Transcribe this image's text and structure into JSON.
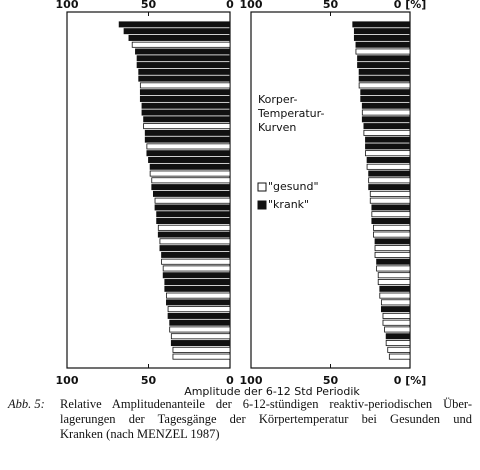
{
  "chart_data": [
    {
      "type": "bar",
      "orientation": "horizontal",
      "xlim": [
        100,
        0
      ],
      "xticks": [
        100,
        50,
        0
      ],
      "series": [
        {
          "name": "\"gesund\"",
          "color": "#ffffff",
          "values": [
            null,
            null,
            null,
            60,
            null,
            null,
            null,
            null,
            null,
            55,
            null,
            null,
            null,
            null,
            null,
            53,
            null,
            null,
            51,
            null,
            null,
            null,
            49,
            48,
            null,
            null,
            46,
            null,
            null,
            null,
            44,
            null,
            43,
            null,
            null,
            42,
            41,
            null,
            null,
            null,
            39,
            null,
            38,
            null,
            null,
            37,
            36,
            null,
            35,
            35
          ]
        },
        {
          "name": "\"krank\"",
          "color": "#111111",
          "values": [
            68,
            65,
            62,
            null,
            58,
            57,
            57,
            56,
            56,
            null,
            55,
            55,
            54,
            54,
            53,
            null,
            52,
            52,
            null,
            51,
            50,
            49,
            null,
            null,
            48,
            47,
            null,
            46,
            45,
            45,
            null,
            44,
            null,
            43,
            42,
            null,
            null,
            41,
            40,
            40,
            null,
            39,
            null,
            38,
            37,
            null,
            null,
            36,
            null,
            null
          ]
        }
      ]
    },
    {
      "type": "bar",
      "orientation": "horizontal",
      "xlim": [
        100,
        0
      ],
      "xticks": [
        100,
        50,
        {
          "value": 0,
          "label": "0 [%]"
        }
      ],
      "annotation": [
        "Korper-",
        "Temperatur-",
        "Kurven"
      ],
      "legend": "center-left",
      "series": [
        {
          "name": "\"gesund\"",
          "color": "#ffffff",
          "values": [
            null,
            null,
            null,
            null,
            34,
            null,
            null,
            null,
            null,
            32,
            null,
            null,
            null,
            30,
            null,
            null,
            29,
            null,
            null,
            28,
            null,
            27,
            null,
            26,
            null,
            25,
            25,
            null,
            24,
            null,
            23,
            23,
            null,
            22,
            22,
            null,
            21,
            20,
            20,
            null,
            19,
            18,
            null,
            17,
            17,
            16,
            null,
            15,
            14,
            13
          ]
        },
        {
          "name": "\"krank\"",
          "color": "#111111",
          "values": [
            36,
            35,
            35,
            34,
            null,
            33,
            33,
            32,
            32,
            null,
            31,
            31,
            30,
            null,
            30,
            29,
            null,
            28,
            28,
            null,
            27,
            null,
            26,
            null,
            26,
            null,
            null,
            24,
            null,
            24,
            null,
            null,
            22,
            null,
            null,
            21,
            null,
            null,
            null,
            19,
            null,
            null,
            18,
            null,
            null,
            null,
            15,
            null,
            null,
            null
          ]
        }
      ]
    }
  ],
  "xlabel": "Amplitude der 6-12 Std Periodik",
  "caption": {
    "label": "Abb. 5:",
    "lines": [
      "Relative Amplitudenanteile der 6-12-stündigen reaktiv-periodischen Über-",
      "lagerungen der Tagesgänge der Körpertemperatur bei Gesunden und",
      "Kranken (nach MENZEL 1987)"
    ]
  }
}
